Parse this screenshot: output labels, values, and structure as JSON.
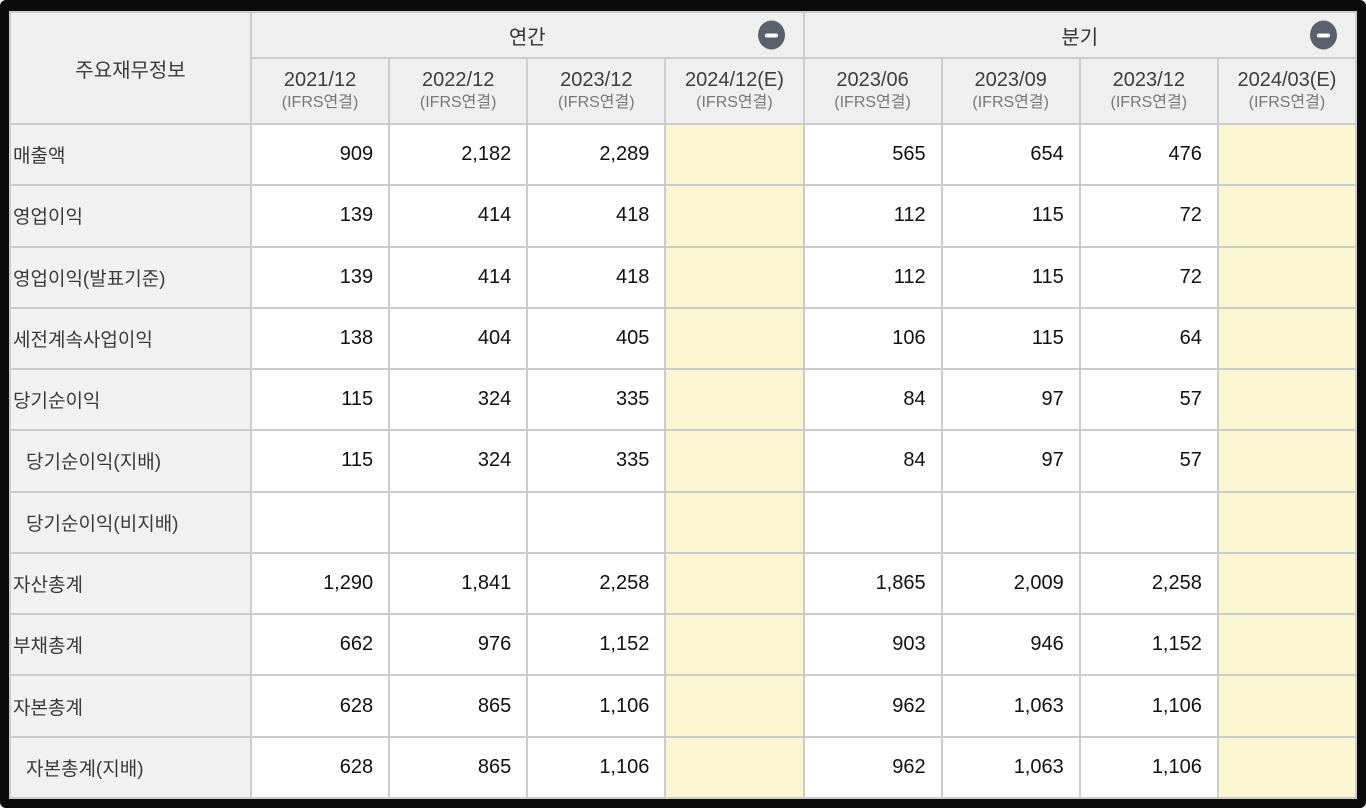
{
  "table": {
    "corner_label": "주요재무정보",
    "groups": [
      {
        "label": "연간",
        "collapse_icon": "minus-icon"
      },
      {
        "label": "분기",
        "collapse_icon": "minus-icon"
      }
    ],
    "columns": [
      {
        "period": "2021/12",
        "standard": "(IFRS연결)",
        "group": "annual",
        "estimate": false
      },
      {
        "period": "2022/12",
        "standard": "(IFRS연결)",
        "group": "annual",
        "estimate": false
      },
      {
        "period": "2023/12",
        "standard": "(IFRS연결)",
        "group": "annual",
        "estimate": false
      },
      {
        "period": "2024/12(E)",
        "standard": "(IFRS연결)",
        "group": "annual",
        "estimate": true
      },
      {
        "period": "2023/06",
        "standard": "(IFRS연결)",
        "group": "quarterly",
        "estimate": false
      },
      {
        "period": "2023/09",
        "standard": "(IFRS연결)",
        "group": "quarterly",
        "estimate": false
      },
      {
        "period": "2023/12",
        "standard": "(IFRS연결)",
        "group": "quarterly",
        "estimate": false
      },
      {
        "period": "2024/03(E)",
        "standard": "(IFRS연결)",
        "group": "quarterly",
        "estimate": true
      }
    ],
    "rows": [
      {
        "label": "매출액",
        "indent": false,
        "values": [
          "909",
          "2,182",
          "2,289",
          "",
          "565",
          "654",
          "476",
          ""
        ]
      },
      {
        "label": "영업이익",
        "indent": false,
        "values": [
          "139",
          "414",
          "418",
          "",
          "112",
          "115",
          "72",
          ""
        ]
      },
      {
        "label": "영업이익(발표기준)",
        "indent": false,
        "values": [
          "139",
          "414",
          "418",
          "",
          "112",
          "115",
          "72",
          ""
        ]
      },
      {
        "label": "세전계속사업이익",
        "indent": false,
        "values": [
          "138",
          "404",
          "405",
          "",
          "106",
          "115",
          "64",
          ""
        ]
      },
      {
        "label": "당기순이익",
        "indent": false,
        "values": [
          "115",
          "324",
          "335",
          "",
          "84",
          "97",
          "57",
          ""
        ]
      },
      {
        "label": "당기순이익(지배)",
        "indent": true,
        "values": [
          "115",
          "324",
          "335",
          "",
          "84",
          "97",
          "57",
          ""
        ]
      },
      {
        "label": "당기순이익(비지배)",
        "indent": true,
        "values": [
          "",
          "",
          "",
          "",
          "",
          "",
          "",
          ""
        ]
      },
      {
        "label": "자산총계",
        "indent": false,
        "values": [
          "1,290",
          "1,841",
          "2,258",
          "",
          "1,865",
          "2,009",
          "2,258",
          ""
        ]
      },
      {
        "label": "부채총계",
        "indent": false,
        "values": [
          "662",
          "976",
          "1,152",
          "",
          "903",
          "946",
          "1,152",
          ""
        ]
      },
      {
        "label": "자본총계",
        "indent": false,
        "values": [
          "628",
          "865",
          "1,106",
          "",
          "962",
          "1,063",
          "1,106",
          ""
        ]
      },
      {
        "label": "자본총계(지배)",
        "indent": true,
        "values": [
          "628",
          "865",
          "1,106",
          "",
          "962",
          "1,063",
          "1,106",
          ""
        ]
      }
    ],
    "colors": {
      "estimate_column_bg": "#faf6d2",
      "header_bg": "#efefef",
      "label_column_bg": "#f1f1f1",
      "gridline": "#cccccc",
      "collapse_button_bg": "#59626c",
      "frame_border": "#0b0b0b"
    }
  }
}
